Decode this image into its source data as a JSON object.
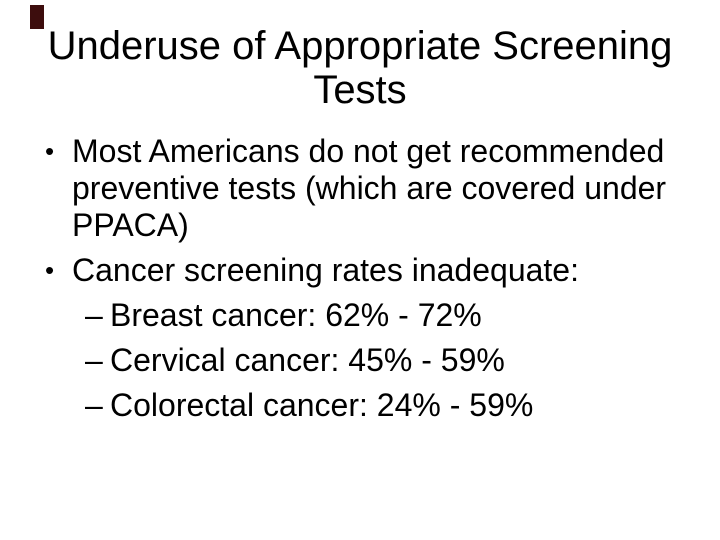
{
  "slide": {
    "background_color": "#ffffff",
    "accent_bar_color": "#3d0d0d",
    "title": "Underuse of Appropriate Screening Tests",
    "bullets": [
      {
        "level": 1,
        "marker": "•",
        "text": "Most Americans do not get recommended preventive tests (which are covered under PPACA)"
      },
      {
        "level": 1,
        "marker": "•",
        "text": "Cancer screening rates inadequate:"
      },
      {
        "level": 2,
        "marker": "–",
        "text": "Breast cancer: 62% - 72%"
      },
      {
        "level": 2,
        "marker": "–",
        "text": "Cervical cancer: 45% - 59%"
      },
      {
        "level": 2,
        "marker": "–",
        "text": "Colorectal cancer: 24% - 59%"
      }
    ]
  }
}
